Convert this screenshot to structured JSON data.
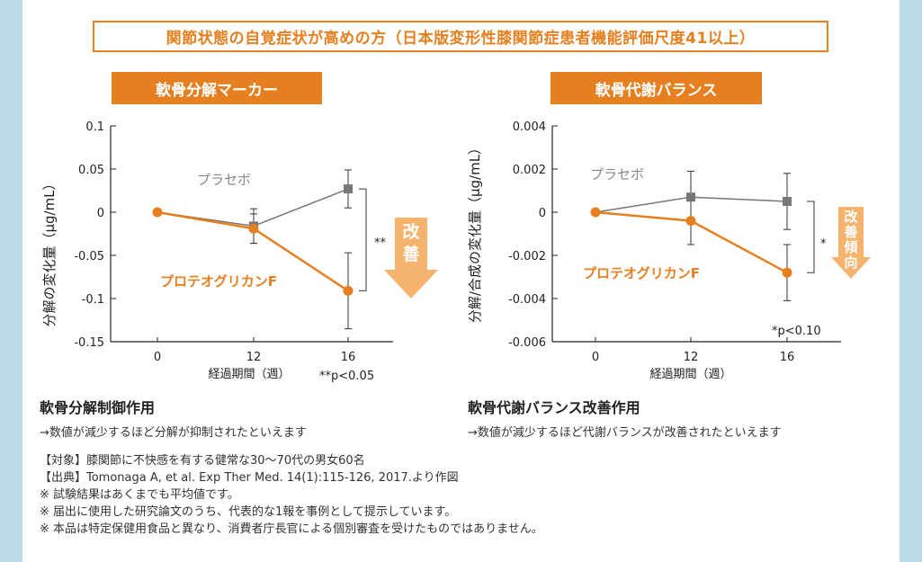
{
  "banner": "関節状態の自覚症状が高めの方（日本版変形性膝関節症患者機能評価尺度41以上）",
  "left_panel": {
    "tag": "軟骨分解マーカー",
    "ylabel": "分解の変化量（μg/mL）",
    "xlabel": "経過期間（週）",
    "placebo_label": "プラセボ",
    "treatment_label": "プロテオグリカンF",
    "sig_marker": "**",
    "pvalue_note": "**p<0.05",
    "arrow_text": "改善",
    "section_title": "軟骨分解制御作用",
    "section_desc": "→数値が減少するほど分解が抑制されたといえます"
  },
  "right_panel": {
    "tag": "軟骨代謝バランス",
    "ylabel": "分解/合成の変化量（μg/mL）",
    "xlabel": "経過期間（週）",
    "placebo_label": "プラセボ",
    "treatment_label": "プロテオグリカンF",
    "sig_marker": "*",
    "pvalue_note": "*p<0.10",
    "arrow_text": "改善傾向",
    "section_title": "軟骨代謝バランス改善作用",
    "section_desc": "→数値が減少するほど代謝バランスが改善されたといえます"
  },
  "footnotes": [
    "【対象】膝関節に不快感を有する健常な30～70代の男女60名",
    "【出典】Tomonaga A, et al. Exp Ther Med. 14(1):115-126, 2017.より作図",
    "※ 試験結果はあくまでも平均値です。",
    "※ 届出に使用した研究論文のうち、代表的な1報を事例として提示しています。",
    "※ 本品は特定保健用食品と異なり、消費者庁長官による個別審査を受けたものではありません。"
  ],
  "colors": {
    "accent": "#e57f1f",
    "placebo": "#777777",
    "arrow": "#f5b36e"
  },
  "chart_data": [
    {
      "type": "line",
      "title": "軟骨分解マーカー",
      "xlabel": "経過期間（週）",
      "ylabel": "分解の変化量（μg/mL）",
      "categories": [
        "0",
        "12",
        "16"
      ],
      "ylim": [
        -0.15,
        0.1
      ],
      "yticks": [
        "0.1",
        "0.05",
        "0",
        "-0.05",
        "-0.1",
        "-0.15"
      ],
      "ytick_values": [
        0.1,
        0.05,
        0,
        -0.05,
        -0.1,
        -0.15
      ],
      "series": [
        {
          "name": "プラセボ",
          "values": [
            0,
            -0.016,
            0.027
          ],
          "errors": [
            0,
            0.02,
            0.022
          ]
        },
        {
          "name": "プロテオグリカンF",
          "values": [
            0,
            -0.019,
            -0.091
          ],
          "errors": [
            0,
            0.017,
            0.044
          ]
        }
      ]
    },
    {
      "type": "line",
      "title": "軟骨代謝バランス",
      "xlabel": "経過期間（週）",
      "ylabel": "分解/合成の変化量（μg/mL）",
      "categories": [
        "0",
        "12",
        "16"
      ],
      "ylim": [
        -0.006,
        0.004
      ],
      "yticks": [
        "0.004",
        "0.002",
        "0",
        "-0.002",
        "-0.004",
        "-0.006"
      ],
      "ytick_values": [
        0.004,
        0.002,
        0,
        -0.002,
        -0.004,
        -0.006
      ],
      "series": [
        {
          "name": "プラセボ",
          "values": [
            0,
            0.0007,
            0.0005
          ],
          "errors": [
            0,
            0.0012,
            0.0013
          ]
        },
        {
          "name": "プロテオグリカンF",
          "values": [
            0,
            -0.0004,
            -0.0028
          ],
          "errors": [
            0,
            0.0011,
            0.0013
          ]
        }
      ]
    }
  ]
}
